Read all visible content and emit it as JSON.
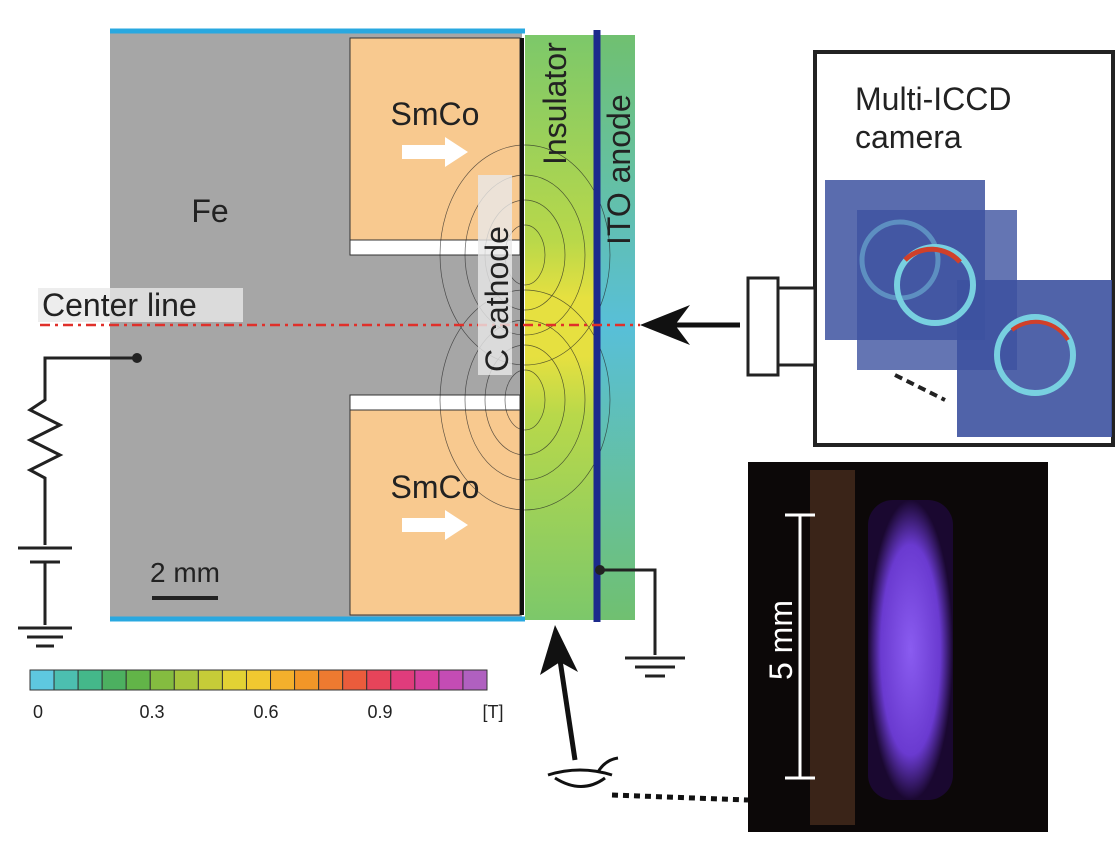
{
  "labels": {
    "smco_top": "SmCo",
    "smco_bottom": "SmCo",
    "fe": "Fe",
    "center_line": "Center line",
    "cathode": "C cathode",
    "insulator": "Insulator",
    "anode": "ITO anode",
    "camera": [
      "Multi-ICCD",
      "camera"
    ],
    "scale_bar": "2 mm",
    "photo_scale": "5 mm"
  },
  "colorbar": {
    "ticks": [
      "0",
      "0.3",
      "0.6",
      "0.9"
    ],
    "unit": "[T]"
  }
}
